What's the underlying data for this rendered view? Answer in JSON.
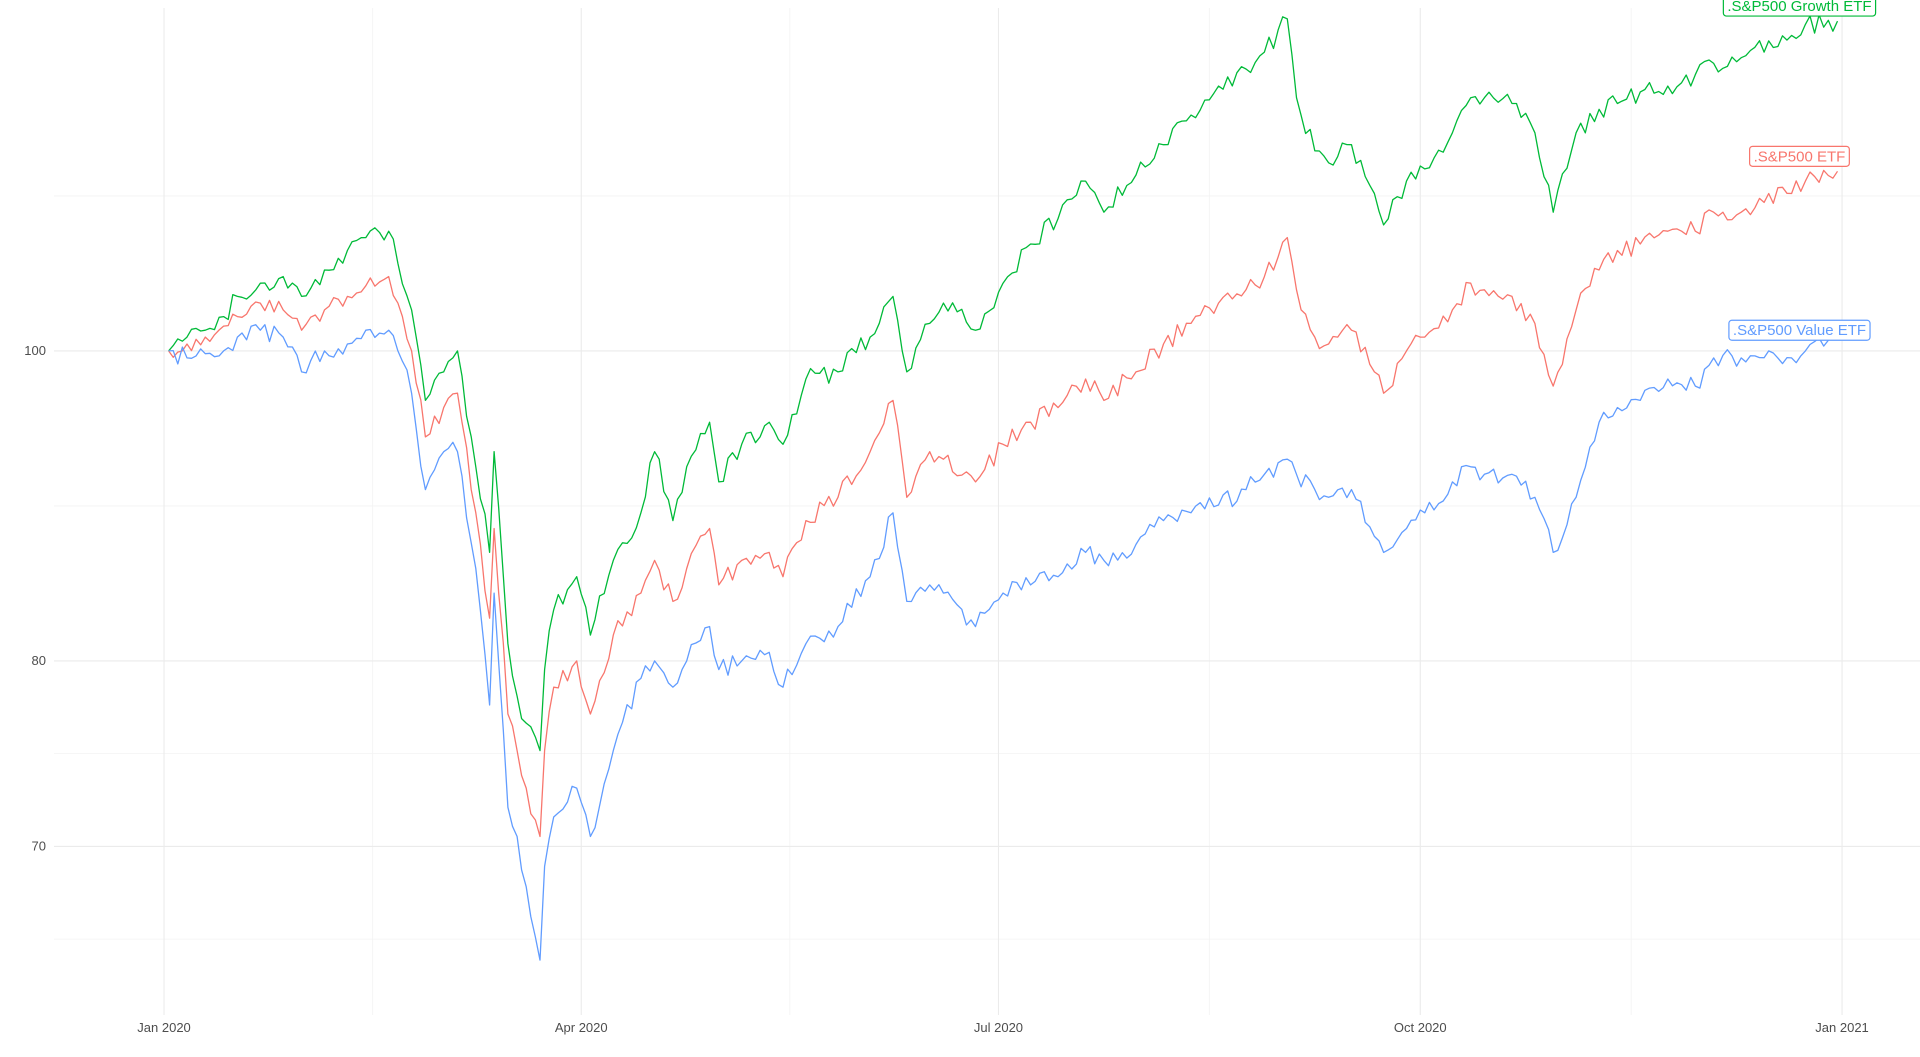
{
  "chart_data": {
    "type": "line",
    "title": "",
    "xlabel": "",
    "ylabel": "",
    "y_scale": "log",
    "ylim": [
      62,
      128
    ],
    "xlim": [
      "2019-12-08",
      "2021-01-18"
    ],
    "grid": true,
    "legend": "direct labels at line ends",
    "x_ticks": [
      {
        "date": "2020-01-01",
        "label": "Jan 2020"
      },
      {
        "date": "2020-04-01",
        "label": "Apr 2020"
      },
      {
        "date": "2020-07-01",
        "label": "Jul 2020"
      },
      {
        "date": "2020-10-01",
        "label": "Oct 2020"
      },
      {
        "date": "2021-01-01",
        "label": "Jan 2021"
      }
    ],
    "y_ticks": [
      {
        "value": 70,
        "label": "70"
      },
      {
        "value": 80,
        "label": "80"
      },
      {
        "value": 100,
        "label": "100"
      }
    ],
    "series": [
      {
        "name": ".S&P500 Growth ETF",
        "color": "#00ba38",
        "points": [
          [
            "2020-01-02",
            100
          ],
          [
            "2020-01-06",
            101
          ],
          [
            "2020-01-10",
            101.5
          ],
          [
            "2020-01-14",
            102.5
          ],
          [
            "2020-01-17",
            104
          ],
          [
            "2020-01-22",
            105
          ],
          [
            "2020-01-27",
            105.5
          ],
          [
            "2020-01-31",
            104
          ],
          [
            "2020-02-05",
            106
          ],
          [
            "2020-02-10",
            107.5
          ],
          [
            "2020-02-14",
            108.5
          ],
          [
            "2020-02-19",
            109
          ],
          [
            "2020-02-21",
            106.5
          ],
          [
            "2020-02-24",
            103
          ],
          [
            "2020-02-27",
            96.5
          ],
          [
            "2020-03-02",
            98.5
          ],
          [
            "2020-03-05",
            100
          ],
          [
            "2020-03-09",
            92
          ],
          [
            "2020-03-12",
            86.5
          ],
          [
            "2020-03-13",
            93
          ],
          [
            "2020-03-16",
            81
          ],
          [
            "2020-03-18",
            78
          ],
          [
            "2020-03-20",
            76.5
          ],
          [
            "2020-03-23",
            75
          ],
          [
            "2020-03-24",
            79.5
          ],
          [
            "2020-03-26",
            83
          ],
          [
            "2020-03-31",
            85
          ],
          [
            "2020-04-03",
            81.5
          ],
          [
            "2020-04-08",
            86
          ],
          [
            "2020-04-14",
            89
          ],
          [
            "2020-04-17",
            93
          ],
          [
            "2020-04-21",
            88.5
          ],
          [
            "2020-04-24",
            92
          ],
          [
            "2020-04-29",
            95
          ],
          [
            "2020-05-01",
            91
          ],
          [
            "2020-05-06",
            93.5
          ],
          [
            "2020-05-12",
            95
          ],
          [
            "2020-05-15",
            93.5
          ],
          [
            "2020-05-20",
            98
          ],
          [
            "2020-05-27",
            98.5
          ],
          [
            "2020-06-03",
            101
          ],
          [
            "2020-06-08",
            104
          ],
          [
            "2020-06-11",
            98.5
          ],
          [
            "2020-06-16",
            102
          ],
          [
            "2020-06-19",
            103.5
          ],
          [
            "2020-06-26",
            101.5
          ],
          [
            "2020-07-02",
            105
          ],
          [
            "2020-07-08",
            108
          ],
          [
            "2020-07-14",
            110
          ],
          [
            "2020-07-20",
            113
          ],
          [
            "2020-07-24",
            110.5
          ],
          [
            "2020-07-31",
            113.5
          ],
          [
            "2020-08-06",
            116
          ],
          [
            "2020-08-12",
            118.5
          ],
          [
            "2020-08-18",
            121
          ],
          [
            "2020-08-24",
            122.5
          ],
          [
            "2020-08-28",
            124
          ],
          [
            "2020-09-02",
            127
          ],
          [
            "2020-09-04",
            120
          ],
          [
            "2020-09-08",
            115.5
          ],
          [
            "2020-09-11",
            114.5
          ],
          [
            "2020-09-16",
            116
          ],
          [
            "2020-09-21",
            112
          ],
          [
            "2020-09-23",
            109.5
          ],
          [
            "2020-09-28",
            113
          ],
          [
            "2020-10-02",
            114
          ],
          [
            "2020-10-08",
            117
          ],
          [
            "2020-10-12",
            120
          ],
          [
            "2020-10-15",
            120
          ],
          [
            "2020-10-21",
            119.5
          ],
          [
            "2020-10-26",
            117
          ],
          [
            "2020-10-30",
            110.5
          ],
          [
            "2020-11-04",
            117
          ],
          [
            "2020-11-09",
            119
          ],
          [
            "2020-11-13",
            119.5
          ],
          [
            "2020-11-18",
            120.5
          ],
          [
            "2020-11-24",
            121
          ],
          [
            "2020-11-30",
            122
          ],
          [
            "2020-12-04",
            123
          ],
          [
            "2020-12-10",
            123.5
          ],
          [
            "2020-12-16",
            125
          ],
          [
            "2020-12-21",
            125.5
          ],
          [
            "2020-12-24",
            126.5
          ],
          [
            "2020-12-31",
            126.8
          ]
        ]
      },
      {
        "name": ".S&P500 ETF",
        "color": "#f8766d",
        "points": [
          [
            "2020-01-02",
            100
          ],
          [
            "2020-01-06",
            100.5
          ],
          [
            "2020-01-10",
            101
          ],
          [
            "2020-01-14",
            101.8
          ],
          [
            "2020-01-17",
            102.5
          ],
          [
            "2020-01-22",
            103.5
          ],
          [
            "2020-01-27",
            103
          ],
          [
            "2020-01-31",
            101.5
          ],
          [
            "2020-02-05",
            103
          ],
          [
            "2020-02-10",
            104
          ],
          [
            "2020-02-14",
            104.8
          ],
          [
            "2020-02-19",
            105.5
          ],
          [
            "2020-02-21",
            103.5
          ],
          [
            "2020-02-24",
            100
          ],
          [
            "2020-02-27",
            94
          ],
          [
            "2020-03-02",
            96
          ],
          [
            "2020-03-05",
            97
          ],
          [
            "2020-03-09",
            89
          ],
          [
            "2020-03-12",
            82.5
          ],
          [
            "2020-03-13",
            88
          ],
          [
            "2020-03-16",
            77
          ],
          [
            "2020-03-18",
            75
          ],
          [
            "2020-03-20",
            73
          ],
          [
            "2020-03-23",
            70.5
          ],
          [
            "2020-03-24",
            75
          ],
          [
            "2020-03-26",
            78.5
          ],
          [
            "2020-03-31",
            80
          ],
          [
            "2020-04-03",
            77
          ],
          [
            "2020-04-08",
            81.5
          ],
          [
            "2020-04-14",
            84
          ],
          [
            "2020-04-17",
            86
          ],
          [
            "2020-04-21",
            83.5
          ],
          [
            "2020-04-24",
            85.5
          ],
          [
            "2020-04-29",
            88
          ],
          [
            "2020-05-01",
            84.5
          ],
          [
            "2020-05-06",
            86
          ],
          [
            "2020-05-12",
            86.5
          ],
          [
            "2020-05-15",
            85
          ],
          [
            "2020-05-20",
            88.5
          ],
          [
            "2020-05-27",
            90
          ],
          [
            "2020-06-03",
            93
          ],
          [
            "2020-06-08",
            96.5
          ],
          [
            "2020-06-11",
            90
          ],
          [
            "2020-06-16",
            93
          ],
          [
            "2020-06-19",
            92.5
          ],
          [
            "2020-06-26",
            91
          ],
          [
            "2020-07-02",
            93.5
          ],
          [
            "2020-07-08",
            95
          ],
          [
            "2020-07-14",
            96
          ],
          [
            "2020-07-20",
            98
          ],
          [
            "2020-07-24",
            96.5
          ],
          [
            "2020-07-31",
            98.5
          ],
          [
            "2020-08-06",
            100.5
          ],
          [
            "2020-08-12",
            102
          ],
          [
            "2020-08-18",
            103.5
          ],
          [
            "2020-08-24",
            104.5
          ],
          [
            "2020-08-28",
            105.5
          ],
          [
            "2020-09-02",
            108.5
          ],
          [
            "2020-09-04",
            104.5
          ],
          [
            "2020-09-08",
            101
          ],
          [
            "2020-09-11",
            100.5
          ],
          [
            "2020-09-16",
            101.5
          ],
          [
            "2020-09-21",
            98.5
          ],
          [
            "2020-09-23",
            97
          ],
          [
            "2020-09-28",
            100
          ],
          [
            "2020-10-02",
            101
          ],
          [
            "2020-10-08",
            103
          ],
          [
            "2020-10-12",
            105
          ],
          [
            "2020-10-15",
            104.5
          ],
          [
            "2020-10-21",
            104
          ],
          [
            "2020-10-26",
            102
          ],
          [
            "2020-10-30",
            97.5
          ],
          [
            "2020-11-04",
            103
          ],
          [
            "2020-11-09",
            106
          ],
          [
            "2020-11-13",
            107.5
          ],
          [
            "2020-11-18",
            108
          ],
          [
            "2020-11-24",
            109
          ],
          [
            "2020-11-30",
            109
          ],
          [
            "2020-12-04",
            110.5
          ],
          [
            "2020-12-10",
            110.5
          ],
          [
            "2020-12-16",
            112
          ],
          [
            "2020-12-21",
            112
          ],
          [
            "2020-12-24",
            113
          ],
          [
            "2020-12-31",
            113.8
          ]
        ]
      },
      {
        "name": ".S&P500 Value ETF",
        "color": "#619cff",
        "points": [
          [
            "2020-01-02",
            100
          ],
          [
            "2020-01-06",
            99.5
          ],
          [
            "2020-01-10",
            99.8
          ],
          [
            "2020-01-14",
            100
          ],
          [
            "2020-01-17",
            101
          ],
          [
            "2020-01-22",
            101.5
          ],
          [
            "2020-01-27",
            101
          ],
          [
            "2020-01-31",
            98.5
          ],
          [
            "2020-02-05",
            100
          ],
          [
            "2020-02-10",
            100.5
          ],
          [
            "2020-02-14",
            101.5
          ],
          [
            "2020-02-19",
            101.5
          ],
          [
            "2020-02-21",
            100
          ],
          [
            "2020-02-24",
            97
          ],
          [
            "2020-02-27",
            90.5
          ],
          [
            "2020-03-02",
            93
          ],
          [
            "2020-03-05",
            93
          ],
          [
            "2020-03-09",
            85.5
          ],
          [
            "2020-03-12",
            77.5
          ],
          [
            "2020-03-13",
            84
          ],
          [
            "2020-03-16",
            72
          ],
          [
            "2020-03-18",
            70.5
          ],
          [
            "2020-03-20",
            68
          ],
          [
            "2020-03-23",
            64.5
          ],
          [
            "2020-03-24",
            69
          ],
          [
            "2020-03-26",
            71.5
          ],
          [
            "2020-03-31",
            73
          ],
          [
            "2020-04-03",
            70.5
          ],
          [
            "2020-04-08",
            75
          ],
          [
            "2020-04-14",
            79
          ],
          [
            "2020-04-17",
            80
          ],
          [
            "2020-04-21",
            78.5
          ],
          [
            "2020-04-24",
            80
          ],
          [
            "2020-04-29",
            82
          ],
          [
            "2020-05-01",
            79.5
          ],
          [
            "2020-05-06",
            80
          ],
          [
            "2020-05-12",
            80.5
          ],
          [
            "2020-05-15",
            78.5
          ],
          [
            "2020-05-20",
            81
          ],
          [
            "2020-05-27",
            82
          ],
          [
            "2020-06-03",
            85
          ],
          [
            "2020-06-08",
            89
          ],
          [
            "2020-06-11",
            83.5
          ],
          [
            "2020-06-16",
            84.5
          ],
          [
            "2020-06-19",
            84
          ],
          [
            "2020-06-26",
            82
          ],
          [
            "2020-07-02",
            84
          ],
          [
            "2020-07-08",
            84.5
          ],
          [
            "2020-07-14",
            85
          ],
          [
            "2020-07-20",
            86.5
          ],
          [
            "2020-07-24",
            86
          ],
          [
            "2020-07-31",
            87
          ],
          [
            "2020-08-06",
            88.5
          ],
          [
            "2020-08-12",
            89
          ],
          [
            "2020-08-18",
            89.5
          ],
          [
            "2020-08-24",
            90.5
          ],
          [
            "2020-08-28",
            91.5
          ],
          [
            "2020-09-02",
            92.5
          ],
          [
            "2020-09-04",
            91.5
          ],
          [
            "2020-09-08",
            90.5
          ],
          [
            "2020-09-11",
            90
          ],
          [
            "2020-09-16",
            90.5
          ],
          [
            "2020-09-21",
            87.5
          ],
          [
            "2020-09-23",
            86.5
          ],
          [
            "2020-09-28",
            88
          ],
          [
            "2020-10-02",
            89
          ],
          [
            "2020-10-08",
            91
          ],
          [
            "2020-10-12",
            92
          ],
          [
            "2020-10-15",
            91.5
          ],
          [
            "2020-10-21",
            91.5
          ],
          [
            "2020-10-26",
            90
          ],
          [
            "2020-10-30",
            86.5
          ],
          [
            "2020-11-04",
            90
          ],
          [
            "2020-11-09",
            95
          ],
          [
            "2020-11-13",
            96
          ],
          [
            "2020-11-18",
            96.5
          ],
          [
            "2020-11-24",
            98
          ],
          [
            "2020-11-30",
            97.5
          ],
          [
            "2020-12-04",
            99.5
          ],
          [
            "2020-12-10",
            99.5
          ],
          [
            "2020-12-16",
            100
          ],
          [
            "2020-12-21",
            99.5
          ],
          [
            "2020-12-24",
            100
          ],
          [
            "2020-12-31",
            101.5
          ]
        ]
      }
    ]
  }
}
